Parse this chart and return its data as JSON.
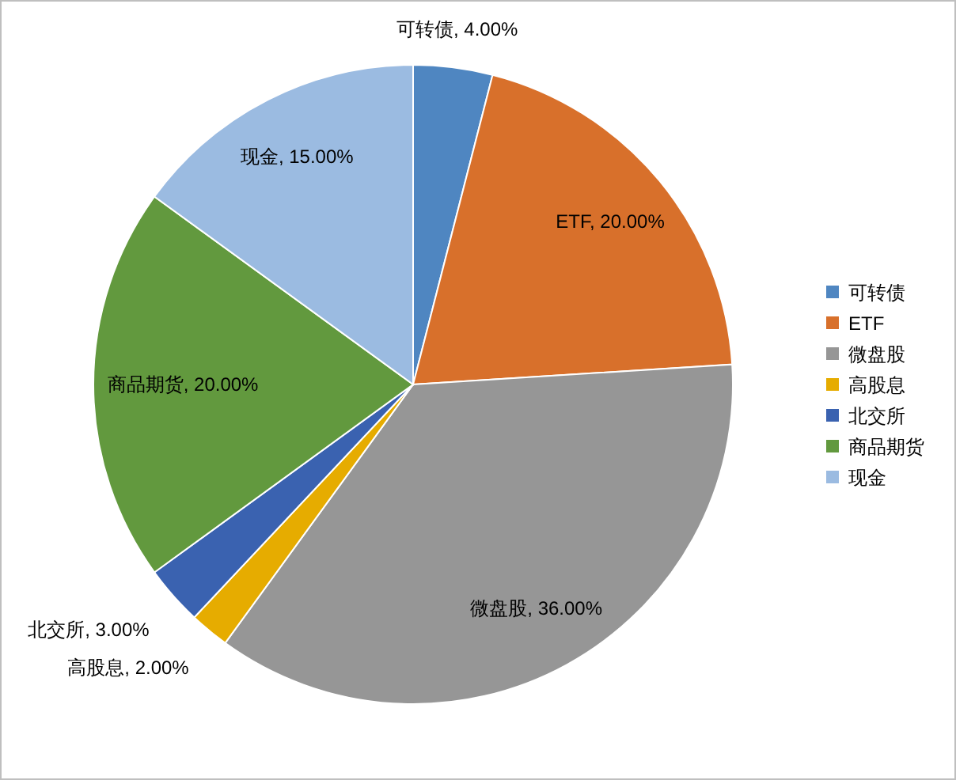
{
  "chart_data": {
    "type": "pie",
    "categories": [
      "可转债",
      "ETF",
      "微盘股",
      "高股息",
      "北交所",
      "商品期货",
      "现金"
    ],
    "values": [
      4,
      20,
      36,
      2,
      3,
      20,
      15
    ],
    "value_labels": [
      "可转债, 4.00%",
      "ETF, 20.00%",
      "微盘股, 36.00%",
      "高股息, 2.00%",
      "北交所, 3.00%",
      "商品期货, 20.00%",
      "现金, 15.00%"
    ],
    "colors": [
      "#4f86c1",
      "#d8702b",
      "#969696",
      "#e6ac00",
      "#3a62b0",
      "#62993e",
      "#9bbbe1"
    ],
    "legend": "right"
  }
}
